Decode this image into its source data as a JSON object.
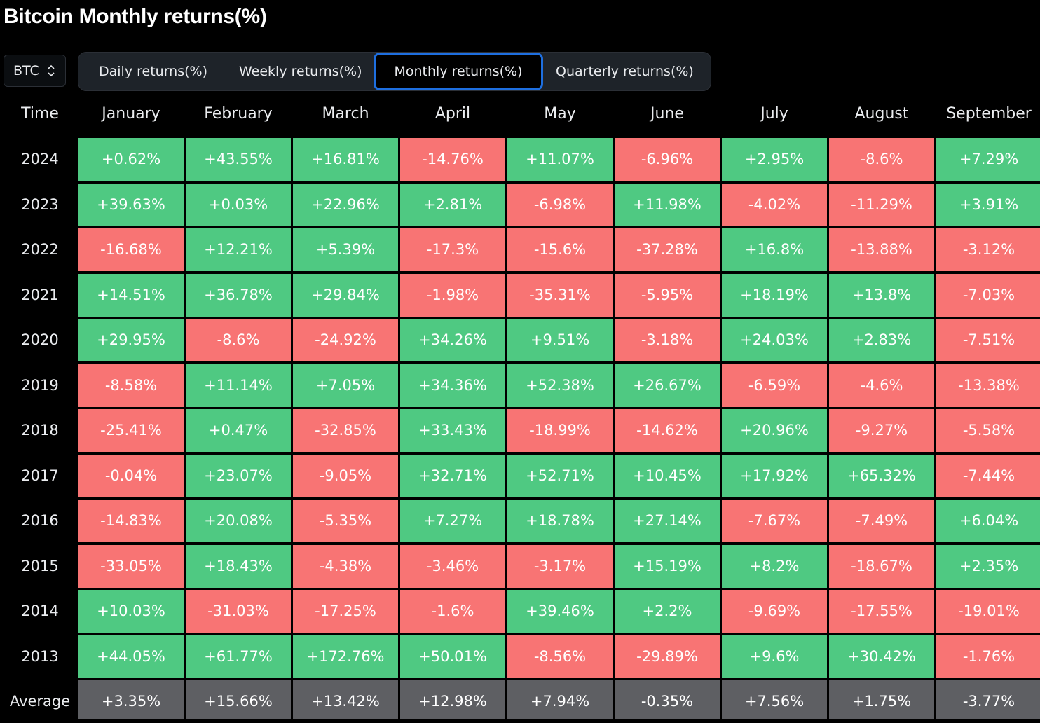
{
  "page": {
    "title": "Bitcoin Monthly returns(%)"
  },
  "asset_selector": {
    "value": "BTC",
    "icon": "chevron-up-down-icon"
  },
  "tabs": [
    {
      "label": "Daily returns(%)",
      "active": false
    },
    {
      "label": "Weekly returns(%)",
      "active": false
    },
    {
      "label": "Monthly returns(%)",
      "active": true
    },
    {
      "label": "Quarterly returns(%)",
      "active": false
    }
  ],
  "colors": {
    "positive": "#4fc982",
    "negative": "#f87474",
    "average": "#5e5f63",
    "active_tab_border": "#1e6fe0"
  },
  "table": {
    "time_header": "Time",
    "months": [
      "January",
      "February",
      "March",
      "April",
      "May",
      "June",
      "July",
      "August",
      "September"
    ],
    "rows": [
      {
        "year": "2024",
        "values": [
          "+0.62%",
          "+43.55%",
          "+16.81%",
          "-14.76%",
          "+11.07%",
          "-6.96%",
          "+2.95%",
          "-8.6%",
          "+7.29%"
        ]
      },
      {
        "year": "2023",
        "values": [
          "+39.63%",
          "+0.03%",
          "+22.96%",
          "+2.81%",
          "-6.98%",
          "+11.98%",
          "-4.02%",
          "-11.29%",
          "+3.91%"
        ]
      },
      {
        "year": "2022",
        "values": [
          "-16.68%",
          "+12.21%",
          "+5.39%",
          "-17.3%",
          "-15.6%",
          "-37.28%",
          "+16.8%",
          "-13.88%",
          "-3.12%"
        ]
      },
      {
        "year": "2021",
        "values": [
          "+14.51%",
          "+36.78%",
          "+29.84%",
          "-1.98%",
          "-35.31%",
          "-5.95%",
          "+18.19%",
          "+13.8%",
          "-7.03%"
        ]
      },
      {
        "year": "2020",
        "values": [
          "+29.95%",
          "-8.6%",
          "-24.92%",
          "+34.26%",
          "+9.51%",
          "-3.18%",
          "+24.03%",
          "+2.83%",
          "-7.51%"
        ]
      },
      {
        "year": "2019",
        "values": [
          "-8.58%",
          "+11.14%",
          "+7.05%",
          "+34.36%",
          "+52.38%",
          "+26.67%",
          "-6.59%",
          "-4.6%",
          "-13.38%"
        ]
      },
      {
        "year": "2018",
        "values": [
          "-25.41%",
          "+0.47%",
          "-32.85%",
          "+33.43%",
          "-18.99%",
          "-14.62%",
          "+20.96%",
          "-9.27%",
          "-5.58%"
        ]
      },
      {
        "year": "2017",
        "values": [
          "-0.04%",
          "+23.07%",
          "-9.05%",
          "+32.71%",
          "+52.71%",
          "+10.45%",
          "+17.92%",
          "+65.32%",
          "-7.44%"
        ]
      },
      {
        "year": "2016",
        "values": [
          "-14.83%",
          "+20.08%",
          "-5.35%",
          "+7.27%",
          "+18.78%",
          "+27.14%",
          "-7.67%",
          "-7.49%",
          "+6.04%"
        ]
      },
      {
        "year": "2015",
        "values": [
          "-33.05%",
          "+18.43%",
          "-4.38%",
          "-3.46%",
          "-3.17%",
          "+15.19%",
          "+8.2%",
          "-18.67%",
          "+2.35%"
        ]
      },
      {
        "year": "2014",
        "values": [
          "+10.03%",
          "-31.03%",
          "-17.25%",
          "-1.6%",
          "+39.46%",
          "+2.2%",
          "-9.69%",
          "-17.55%",
          "-19.01%"
        ]
      },
      {
        "year": "2013",
        "values": [
          "+44.05%",
          "+61.77%",
          "+172.76%",
          "+50.01%",
          "-8.56%",
          "-29.89%",
          "+9.6%",
          "+30.42%",
          "-1.76%"
        ]
      }
    ],
    "average": {
      "label": "Average",
      "values": [
        "+3.35%",
        "+15.66%",
        "+13.42%",
        "+12.98%",
        "+7.94%",
        "-0.35%",
        "+7.56%",
        "+1.75%",
        "-3.77%"
      ]
    }
  }
}
